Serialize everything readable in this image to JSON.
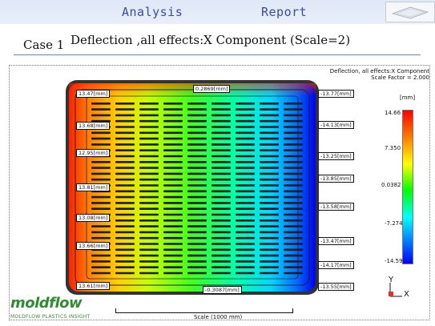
{
  "header": {
    "analysis": "Analysis",
    "report": "Report"
  },
  "case_label": "Case 1",
  "title": "Deflection ,all effects:X Component (Scale=2)",
  "plot": {
    "title_line1": "Deflection, all effects:X Component",
    "title_line2": "Scale Factor = 2.000",
    "labels_left": [
      "13.47[mm]",
      "13.68[mm]",
      "12.95[mm]",
      "13.81[mm]",
      "13.08[mm]",
      "13.66[mm]",
      "13.61[mm]"
    ],
    "labels_right": [
      "-13.77[mm]",
      "-14.13[mm]",
      "-13.25[mm]",
      "-13.85[mm]",
      "-13.58[mm]",
      "-13.47[mm]",
      "-14.17[mm]",
      "-13.55[mm]"
    ],
    "label_top": "0.2869[mm]",
    "label_bottom": "-0.3087[mm]",
    "scale_text": "Scale (1000 mm)",
    "axis_y": "Y",
    "axis_x": "X"
  },
  "legend": {
    "unit": "[mm]",
    "ticks": [
      "14.66",
      "7.350",
      "0.0382",
      "-7.274",
      "-14.59"
    ],
    "colors": [
      "#ff0000",
      "#ff8000",
      "#ffff00",
      "#00ff00",
      "#00ffff",
      "#0080ff",
      "#0000ff"
    ]
  },
  "logo": {
    "name": "moldflow",
    "sub": "MOLDFLOW PLASTICS INSIGHT"
  }
}
